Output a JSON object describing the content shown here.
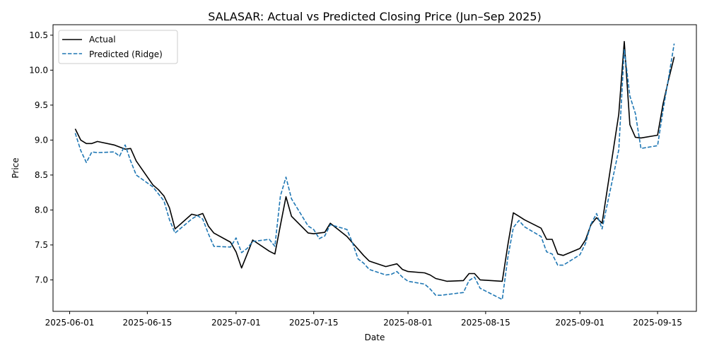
{
  "chart_data": {
    "type": "line",
    "title": "SALASAR: Actual vs Predicted Closing Price (Jun–Sep 2025)",
    "xlabel": "Date",
    "ylabel": "Price",
    "xlim": [
      "2025-05-29",
      "2025-09-22"
    ],
    "ylim": [
      6.55,
      10.65
    ],
    "x_ticks": [
      "2025-06-01",
      "2025-06-15",
      "2025-07-01",
      "2025-07-15",
      "2025-08-01",
      "2025-08-15",
      "2025-09-01",
      "2025-09-15"
    ],
    "y_ticks": [
      7.0,
      7.5,
      8.0,
      8.5,
      9.0,
      9.5,
      10.0,
      10.5
    ],
    "y_tick_labels": [
      "7.0",
      "7.5",
      "8.0",
      "8.5",
      "9.0",
      "9.5",
      "10.0",
      "10.5"
    ],
    "legend": {
      "position": "top-left"
    },
    "x": [
      "2025-06-02",
      "2025-06-03",
      "2025-06-04",
      "2025-06-05",
      "2025-06-06",
      "2025-06-09",
      "2025-06-10",
      "2025-06-11",
      "2025-06-12",
      "2025-06-13",
      "2025-06-16",
      "2025-06-17",
      "2025-06-18",
      "2025-06-19",
      "2025-06-20",
      "2025-06-23",
      "2025-06-24",
      "2025-06-25",
      "2025-06-26",
      "2025-06-27",
      "2025-06-30",
      "2025-07-01",
      "2025-07-02",
      "2025-07-03",
      "2025-07-04",
      "2025-07-07",
      "2025-07-08",
      "2025-07-09",
      "2025-07-10",
      "2025-07-11",
      "2025-07-14",
      "2025-07-15",
      "2025-07-16",
      "2025-07-17",
      "2025-07-18",
      "2025-07-21",
      "2025-07-22",
      "2025-07-23",
      "2025-07-24",
      "2025-07-25",
      "2025-07-28",
      "2025-07-29",
      "2025-07-30",
      "2025-07-31",
      "2025-08-01",
      "2025-08-04",
      "2025-08-05",
      "2025-08-06",
      "2025-08-07",
      "2025-08-08",
      "2025-08-11",
      "2025-08-12",
      "2025-08-13",
      "2025-08-14",
      "2025-08-18",
      "2025-08-19",
      "2025-08-20",
      "2025-08-21",
      "2025-08-22",
      "2025-08-25",
      "2025-08-26",
      "2025-08-27",
      "2025-08-28",
      "2025-08-29",
      "2025-09-01",
      "2025-09-02",
      "2025-09-03",
      "2025-09-04",
      "2025-09-05",
      "2025-09-08",
      "2025-09-09",
      "2025-09-10",
      "2025-09-11",
      "2025-09-12",
      "2025-09-15",
      "2025-09-16",
      "2025-09-17",
      "2025-09-18"
    ],
    "series": [
      {
        "name": "Actual",
        "color": "#000000",
        "style": "solid",
        "values": [
          9.16,
          9.0,
          8.95,
          8.95,
          8.98,
          8.93,
          8.9,
          8.87,
          8.88,
          8.7,
          8.36,
          8.29,
          8.2,
          8.03,
          7.73,
          7.94,
          7.92,
          7.95,
          7.77,
          7.67,
          7.54,
          7.4,
          7.17,
          7.37,
          7.57,
          7.41,
          7.37,
          7.78,
          8.19,
          7.91,
          7.67,
          7.66,
          7.67,
          7.68,
          7.81,
          7.62,
          7.53,
          7.44,
          7.35,
          7.27,
          7.19,
          7.21,
          7.23,
          7.15,
          7.12,
          7.1,
          7.07,
          7.02,
          7.0,
          6.98,
          6.99,
          7.09,
          7.09,
          7.0,
          6.98,
          7.5,
          7.96,
          7.91,
          7.86,
          7.74,
          7.58,
          7.58,
          7.37,
          7.35,
          7.45,
          7.57,
          7.79,
          7.89,
          7.81,
          9.37,
          10.41,
          9.22,
          9.04,
          9.03,
          9.07,
          9.52,
          9.87,
          10.19
        ]
      },
      {
        "name": "Predicted (Ridge)",
        "color": "#1f77b4",
        "style": "dashed",
        "values": [
          9.1,
          8.85,
          8.68,
          8.83,
          8.82,
          8.83,
          8.77,
          8.93,
          8.7,
          8.5,
          8.33,
          8.23,
          8.13,
          7.86,
          7.67,
          7.87,
          7.92,
          7.87,
          7.66,
          7.48,
          7.47,
          7.6,
          7.39,
          7.45,
          7.55,
          7.58,
          7.48,
          8.2,
          8.47,
          8.16,
          7.77,
          7.72,
          7.59,
          7.63,
          7.79,
          7.72,
          7.53,
          7.3,
          7.24,
          7.15,
          7.07,
          7.08,
          7.12,
          7.04,
          6.98,
          6.94,
          6.87,
          6.78,
          6.78,
          6.79,
          6.82,
          6.99,
          7.04,
          6.88,
          6.72,
          7.32,
          7.75,
          7.85,
          7.76,
          7.62,
          7.4,
          7.37,
          7.21,
          7.21,
          7.36,
          7.52,
          7.8,
          7.95,
          7.73,
          8.86,
          10.3,
          9.63,
          9.38,
          8.88,
          8.92,
          9.43,
          9.9,
          10.38
        ]
      }
    ]
  }
}
